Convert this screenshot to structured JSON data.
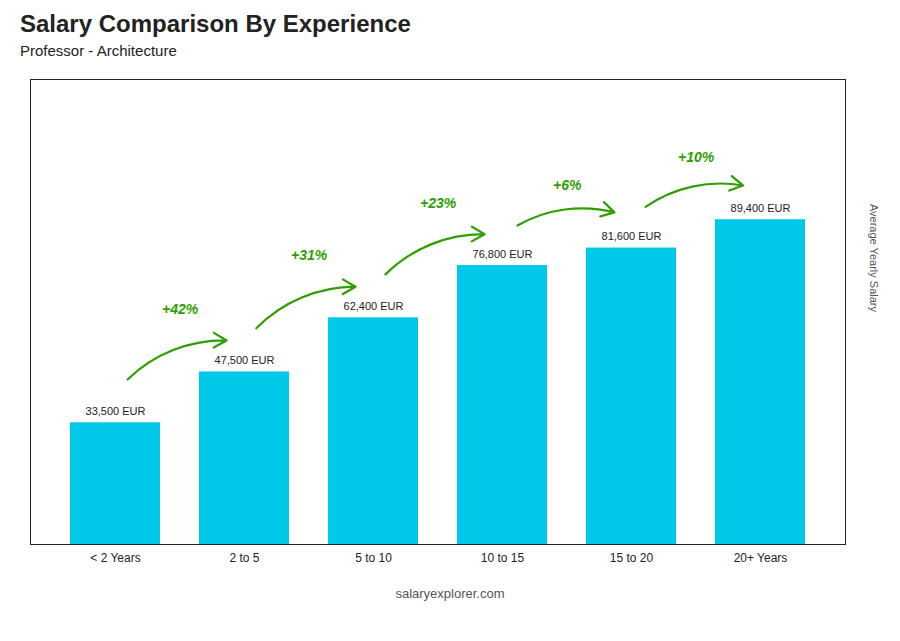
{
  "chart_data": {
    "type": "bar",
    "title": "Salary Comparison By Experience",
    "subtitle": "Professor - Architecture",
    "ylabel": "Average Yearly Salary",
    "caption": "salaryexplorer.com",
    "categories": [
      "< 2 Years",
      "2 to 5",
      "5 to 10",
      "10 to 15",
      "15 to 20",
      "20+ Years"
    ],
    "values": [
      33500,
      47500,
      62400,
      76800,
      81600,
      89400
    ],
    "value_labels": [
      "33,500 EUR",
      "47,500 EUR",
      "62,400 EUR",
      "76,800 EUR",
      "81,600 EUR",
      "89,400 EUR"
    ],
    "data_labels": true,
    "color": "#00c8e8",
    "ylim": [
      0,
      128000
    ],
    "tick_labels": "x",
    "grid": false,
    "annotations": [
      {
        "text": "+42%",
        "from": "< 2 Years",
        "to": "2 to 5",
        "color": "#2e9e00"
      },
      {
        "text": "+31%",
        "from": "2 to 5",
        "to": "5 to 10",
        "color": "#2e9e00"
      },
      {
        "text": "+23%",
        "from": "5 to 10",
        "to": "10 to 15",
        "color": "#2e9e00"
      },
      {
        "text": "+6%",
        "from": "10 to 15",
        "to": "15 to 20",
        "color": "#2e9e00"
      },
      {
        "text": "+10%",
        "from": "15 to 20",
        "to": "20+ Years",
        "color": "#2e9e00"
      }
    ]
  }
}
